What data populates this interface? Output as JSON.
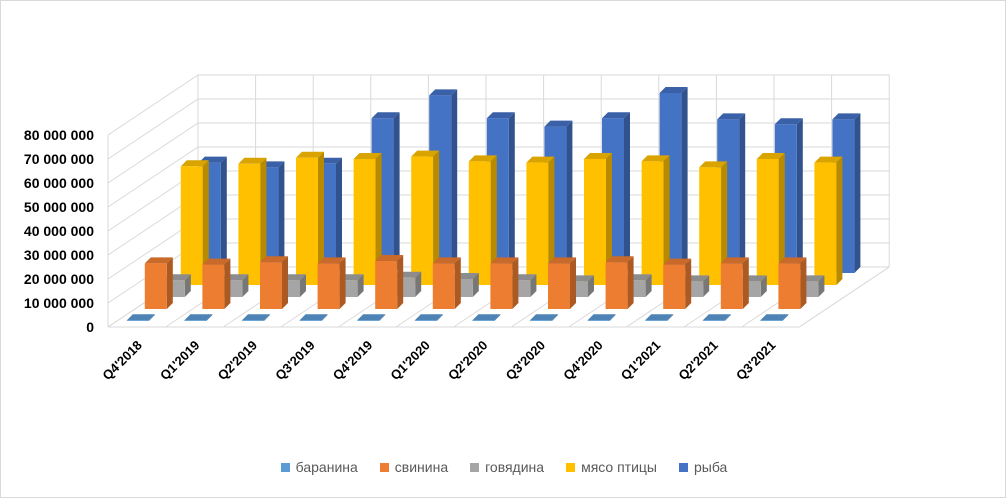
{
  "chart_data": {
    "type": "bar",
    "subtype": "3d-clustered-column",
    "categories": [
      "Q4'2018",
      "Q1'2019",
      "Q2'2019",
      "Q3'2019",
      "Q4'2019",
      "Q1'2020",
      "Q2'2020",
      "Q3'2020",
      "Q4'2020",
      "Q1'2021",
      "Q2'2021",
      "Q3'2021"
    ],
    "series": [
      {
        "name": "баранина",
        "color": "#5B9BD5",
        "values": [
          300000,
          300000,
          300000,
          300000,
          300000,
          300000,
          300000,
          300000,
          300000,
          300000,
          300000,
          300000
        ]
      },
      {
        "name": "свинина",
        "color": "#ED7D31",
        "values": [
          19000000,
          18500000,
          19500000,
          19000000,
          20000000,
          19000000,
          19000000,
          19000000,
          19500000,
          18500000,
          19000000,
          19000000
        ]
      },
      {
        "name": "говядина",
        "color": "#A5A5A5",
        "values": [
          7000000,
          7000000,
          7000000,
          7000000,
          8000000,
          7500000,
          7000000,
          6500000,
          7000000,
          6500000,
          6500000,
          6500000
        ]
      },
      {
        "name": "мясо птицы",
        "color": "#FFC000",
        "values": [
          49500000,
          50500000,
          53000000,
          52500000,
          53500000,
          51500000,
          51000000,
          52500000,
          51500000,
          49000000,
          52500000,
          51000000
        ]
      },
      {
        "name": "рыба",
        "color": "#4472C4",
        "values": [
          46000000,
          44000000,
          45500000,
          64500000,
          74000000,
          64500000,
          61000000,
          64500000,
          75000000,
          64000000,
          62000000,
          64000000
        ]
      }
    ],
    "yticks": [
      "0",
      "10 000 000",
      "20 000 000",
      "30 000 000",
      "40 000 000",
      "50 000 000",
      "60 000 000",
      "70 000 000",
      "80 000 000"
    ],
    "ylim": [
      0,
      80000000
    ],
    "grid": true,
    "legend_position": "bottom",
    "title": "",
    "xlabel": "",
    "ylabel": ""
  }
}
